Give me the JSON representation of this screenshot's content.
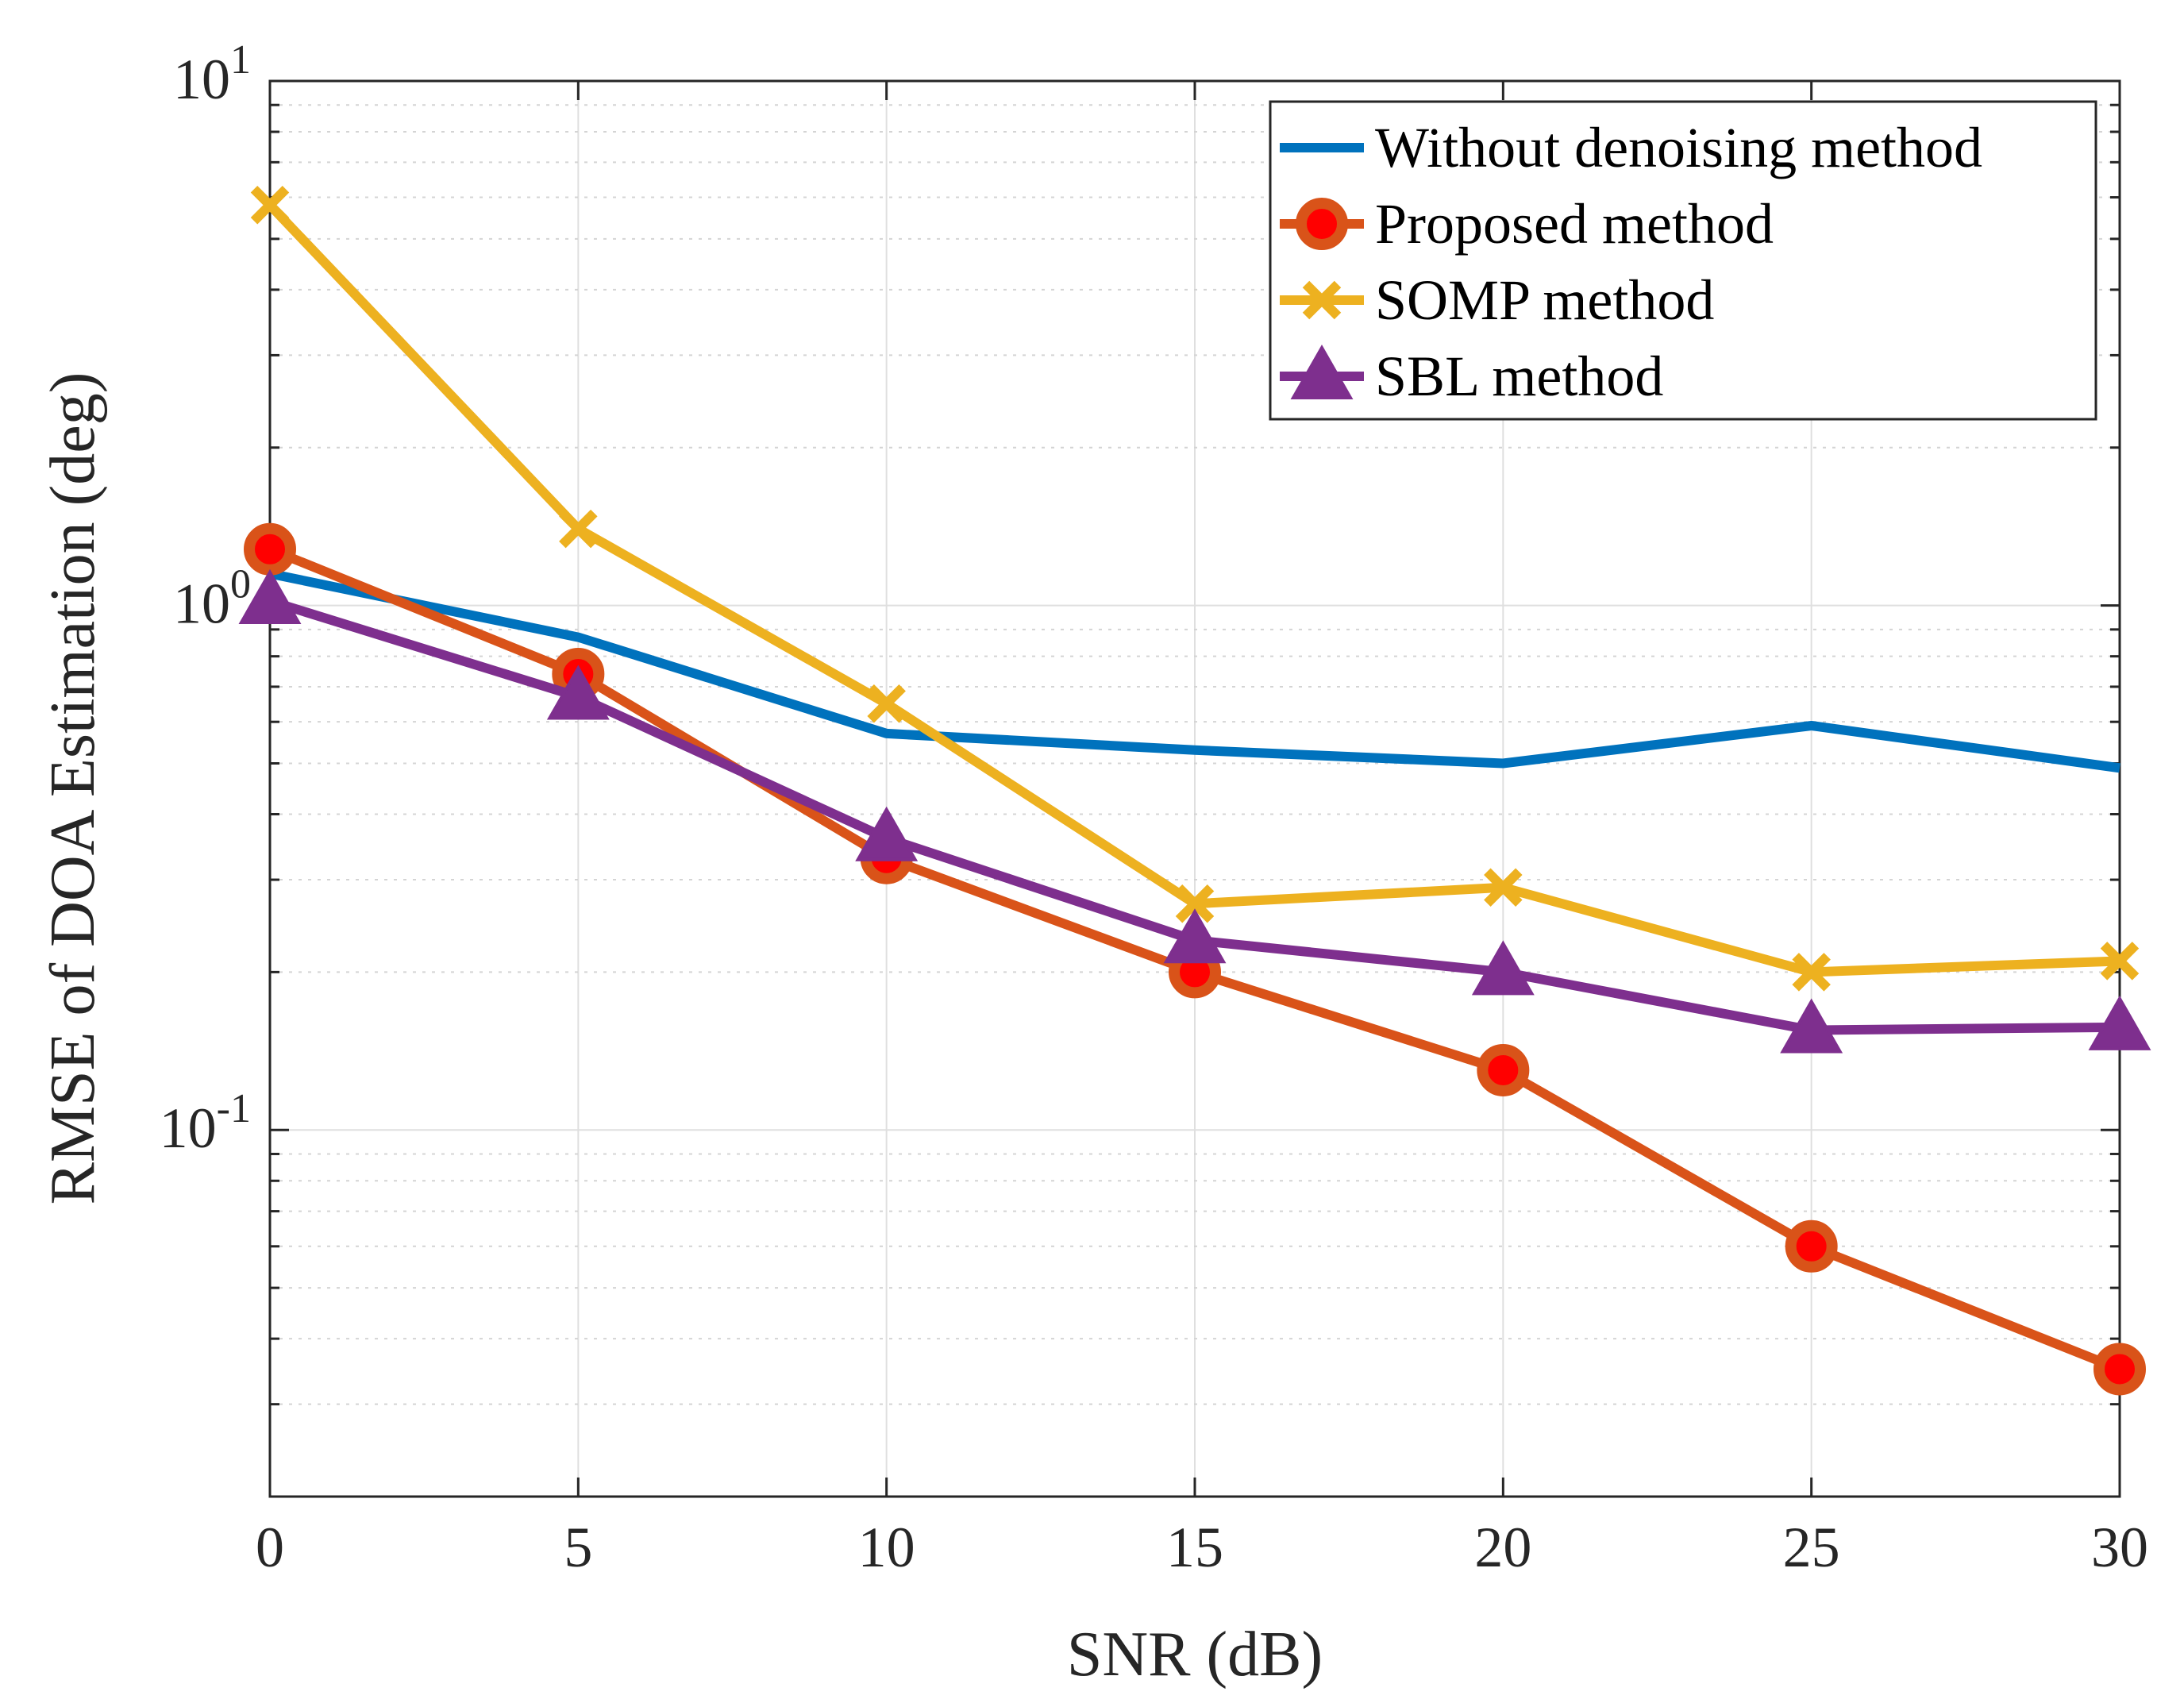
{
  "chart_data": {
    "type": "line",
    "xlabel": "SNR (dB)",
    "ylabel": "RMSE of DOA Estimation (deg)",
    "x": [
      0,
      5,
      10,
      15,
      20,
      25,
      30
    ],
    "xlim": [
      0,
      30
    ],
    "xticks": [
      "0",
      "5",
      "10",
      "15",
      "20",
      "25",
      "30"
    ],
    "yscale": "log",
    "ylim": [
      0.02,
      10
    ],
    "yticks": [
      {
        "value": 10,
        "base": "10",
        "exp": "1"
      },
      {
        "value": 1,
        "base": "10",
        "exp": "0"
      },
      {
        "value": 0.1,
        "base": "10",
        "exp": "-1"
      }
    ],
    "grid": true,
    "legend_position": "top-right",
    "series": [
      {
        "name": "Without denoising method",
        "color": "#0072BD",
        "marker": "none",
        "values": [
          1.15,
          0.87,
          0.57,
          0.53,
          0.5,
          0.59,
          0.49
        ]
      },
      {
        "name": "Proposed method",
        "color": "#D95319",
        "marker": "circle",
        "values": [
          1.28,
          0.74,
          0.33,
          0.2,
          0.13,
          0.06,
          0.035
        ]
      },
      {
        "name": "SOMP method",
        "color": "#EDB120",
        "marker": "x",
        "values": [
          5.8,
          1.4,
          0.65,
          0.27,
          0.29,
          0.2,
          0.21
        ]
      },
      {
        "name": "SBL method",
        "color": "#7E2F8E",
        "marker": "triangle",
        "values": [
          1.02,
          0.67,
          0.36,
          0.23,
          0.2,
          0.155,
          0.157
        ]
      }
    ]
  }
}
